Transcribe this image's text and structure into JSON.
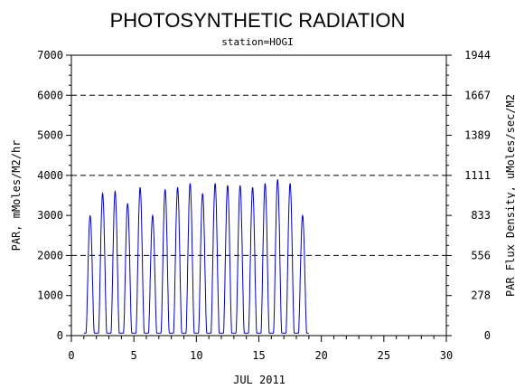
{
  "header": {
    "title": "PHOTOSYNTHETIC RADIATION",
    "subtitle": "station=HOGI"
  },
  "chart_data": {
    "type": "line",
    "title": "PHOTOSYNTHETIC RADIATION",
    "subtitle": "station=HOGI",
    "xlabel": "JUL 2011",
    "ylabel": "PAR, mMoles/M2/hr",
    "y2label": "PAR Flux Density, uMoles/sec/M2",
    "xlim": [
      0,
      30
    ],
    "ylim": [
      0,
      7000
    ],
    "x_ticks": [
      "0",
      "5",
      "10",
      "15",
      "20",
      "25",
      "30"
    ],
    "y_ticks": [
      "0",
      "1000",
      "2000",
      "3000",
      "4000",
      "5000",
      "6000",
      "7000"
    ],
    "y2_ticks": [
      "0",
      "278",
      "556",
      "833",
      "1111",
      "1389",
      "1667",
      "1944"
    ],
    "dashed_gridlines_y": [
      2000,
      4000,
      6000
    ],
    "line_color": "#0000cc",
    "daily_peaks": [
      {
        "day": 1,
        "peak": 3000
      },
      {
        "day": 2,
        "peak": 3550
      },
      {
        "day": 3,
        "peak": 3600
      },
      {
        "day": 4,
        "peak": 3300
      },
      {
        "day": 5,
        "peak": 3700
      },
      {
        "day": 6,
        "peak": 3000
      },
      {
        "day": 7,
        "peak": 3650
      },
      {
        "day": 8,
        "peak": 3700
      },
      {
        "day": 9,
        "peak": 3800
      },
      {
        "day": 10,
        "peak": 3550
      },
      {
        "day": 11,
        "peak": 3800
      },
      {
        "day": 12,
        "peak": 3750
      },
      {
        "day": 13,
        "peak": 3750
      },
      {
        "day": 14,
        "peak": 3700
      },
      {
        "day": 15,
        "peak": 3800
      },
      {
        "day": 16,
        "peak": 3900
      },
      {
        "day": 17,
        "peak": 3800
      },
      {
        "day": 18,
        "peak": 3000
      }
    ],
    "data_start_day": 1.0,
    "data_end_day": 19.0
  }
}
